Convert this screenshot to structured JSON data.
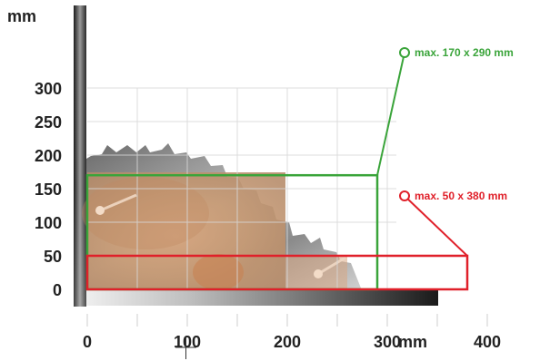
{
  "y_unit": "mm",
  "x_unit": "mm",
  "y_ticks": [
    "300",
    "250",
    "200",
    "150",
    "100",
    "50",
    "0"
  ],
  "x_ticks": [
    "0",
    "100",
    "200",
    "300",
    "400"
  ],
  "callouts": {
    "large": {
      "label": "max. 170 x 290 mm",
      "color": "#3aa43a"
    },
    "small": {
      "label": "max. 50 x 380 mm",
      "color": "#e0202a"
    }
  },
  "workpieces": {
    "large": {
      "height_mm": 170,
      "width_mm": 290
    },
    "small": {
      "height_mm": 50,
      "width_mm": 380
    }
  }
}
